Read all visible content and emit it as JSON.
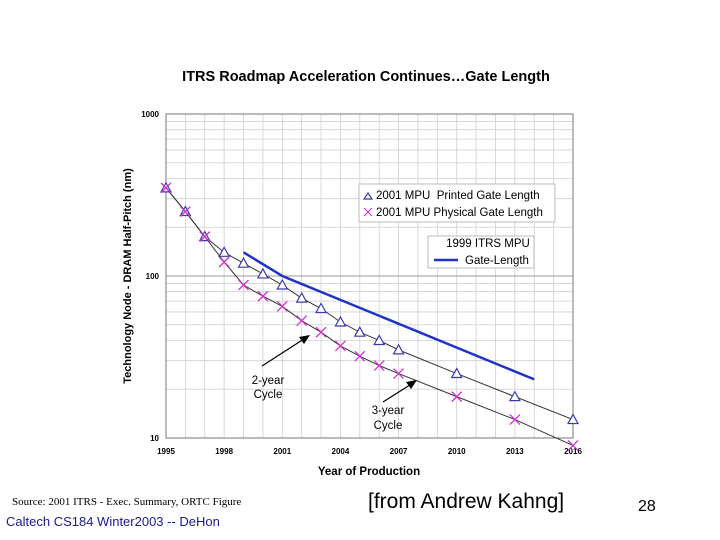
{
  "chart_data": {
    "type": "line",
    "title": "ITRS Roadmap Acceleration Continues…Gate Length",
    "xlabel": "Year of Production",
    "ylabel": "Technology Node - DRAM Half-Pitch (nm)",
    "xscale": "linear",
    "yscale": "log",
    "xlim": [
      1995,
      2016
    ],
    "ylim": [
      10,
      1000
    ],
    "x_ticks": [
      "1995",
      "1998",
      "2001",
      "2004",
      "2007",
      "2010",
      "2013",
      "2016"
    ],
    "y_ticks": [
      "10",
      "100",
      "1000"
    ],
    "grid": true,
    "series": [
      {
        "name": "2001 MPU Printed Gate Length",
        "marker": "triangle",
        "color": "#3a3ab0",
        "x": [
          1995,
          1996,
          1997,
          1998,
          1999,
          2000,
          2001,
          2002,
          2003,
          2004,
          2005,
          2006,
          2007,
          2010,
          2013,
          2016
        ],
        "y": [
          350,
          250,
          175,
          140,
          120,
          103,
          88,
          73,
          63,
          52,
          45,
          40,
          35,
          25,
          18,
          13
        ]
      },
      {
        "name": "2001 MPU Physical Gate Length",
        "marker": "x",
        "color": "#cc33cc",
        "x": [
          1995,
          1996,
          1997,
          1998,
          1999,
          2000,
          2001,
          2002,
          2003,
          2004,
          2005,
          2006,
          2007,
          2010,
          2013,
          2016
        ],
        "y": [
          350,
          250,
          175,
          122,
          88,
          75,
          65,
          53,
          45,
          37,
          32,
          28,
          25,
          18,
          13,
          9
        ]
      },
      {
        "name": "1999 ITRS MPU Gate-Length",
        "marker": "none",
        "color": "#1f33c7",
        "x": [
          1999,
          2001,
          2014
        ],
        "y": [
          140,
          100,
          23
        ]
      }
    ],
    "legend": {
      "position": "top-right",
      "entries": [
        "2001 MPU  Printed Gate Length",
        "2001 MPU Physical Gate Length"
      ]
    },
    "legend2": {
      "title": "1999 ITRS MPU",
      "entry": "Gate-Length"
    },
    "annotations": [
      {
        "label_lines": [
          "2-year",
          "Cycle"
        ]
      },
      {
        "label_lines": [
          "3-year",
          "Cycle"
        ]
      }
    ]
  },
  "slide": {
    "source": "Source:  2001 ITRS - Exec. Summary, ORTC Figure",
    "footer": "Caltech CS184 Winter2003 -- DeHon",
    "attribution": "[from Andrew Kahng]",
    "page_number": "28"
  }
}
